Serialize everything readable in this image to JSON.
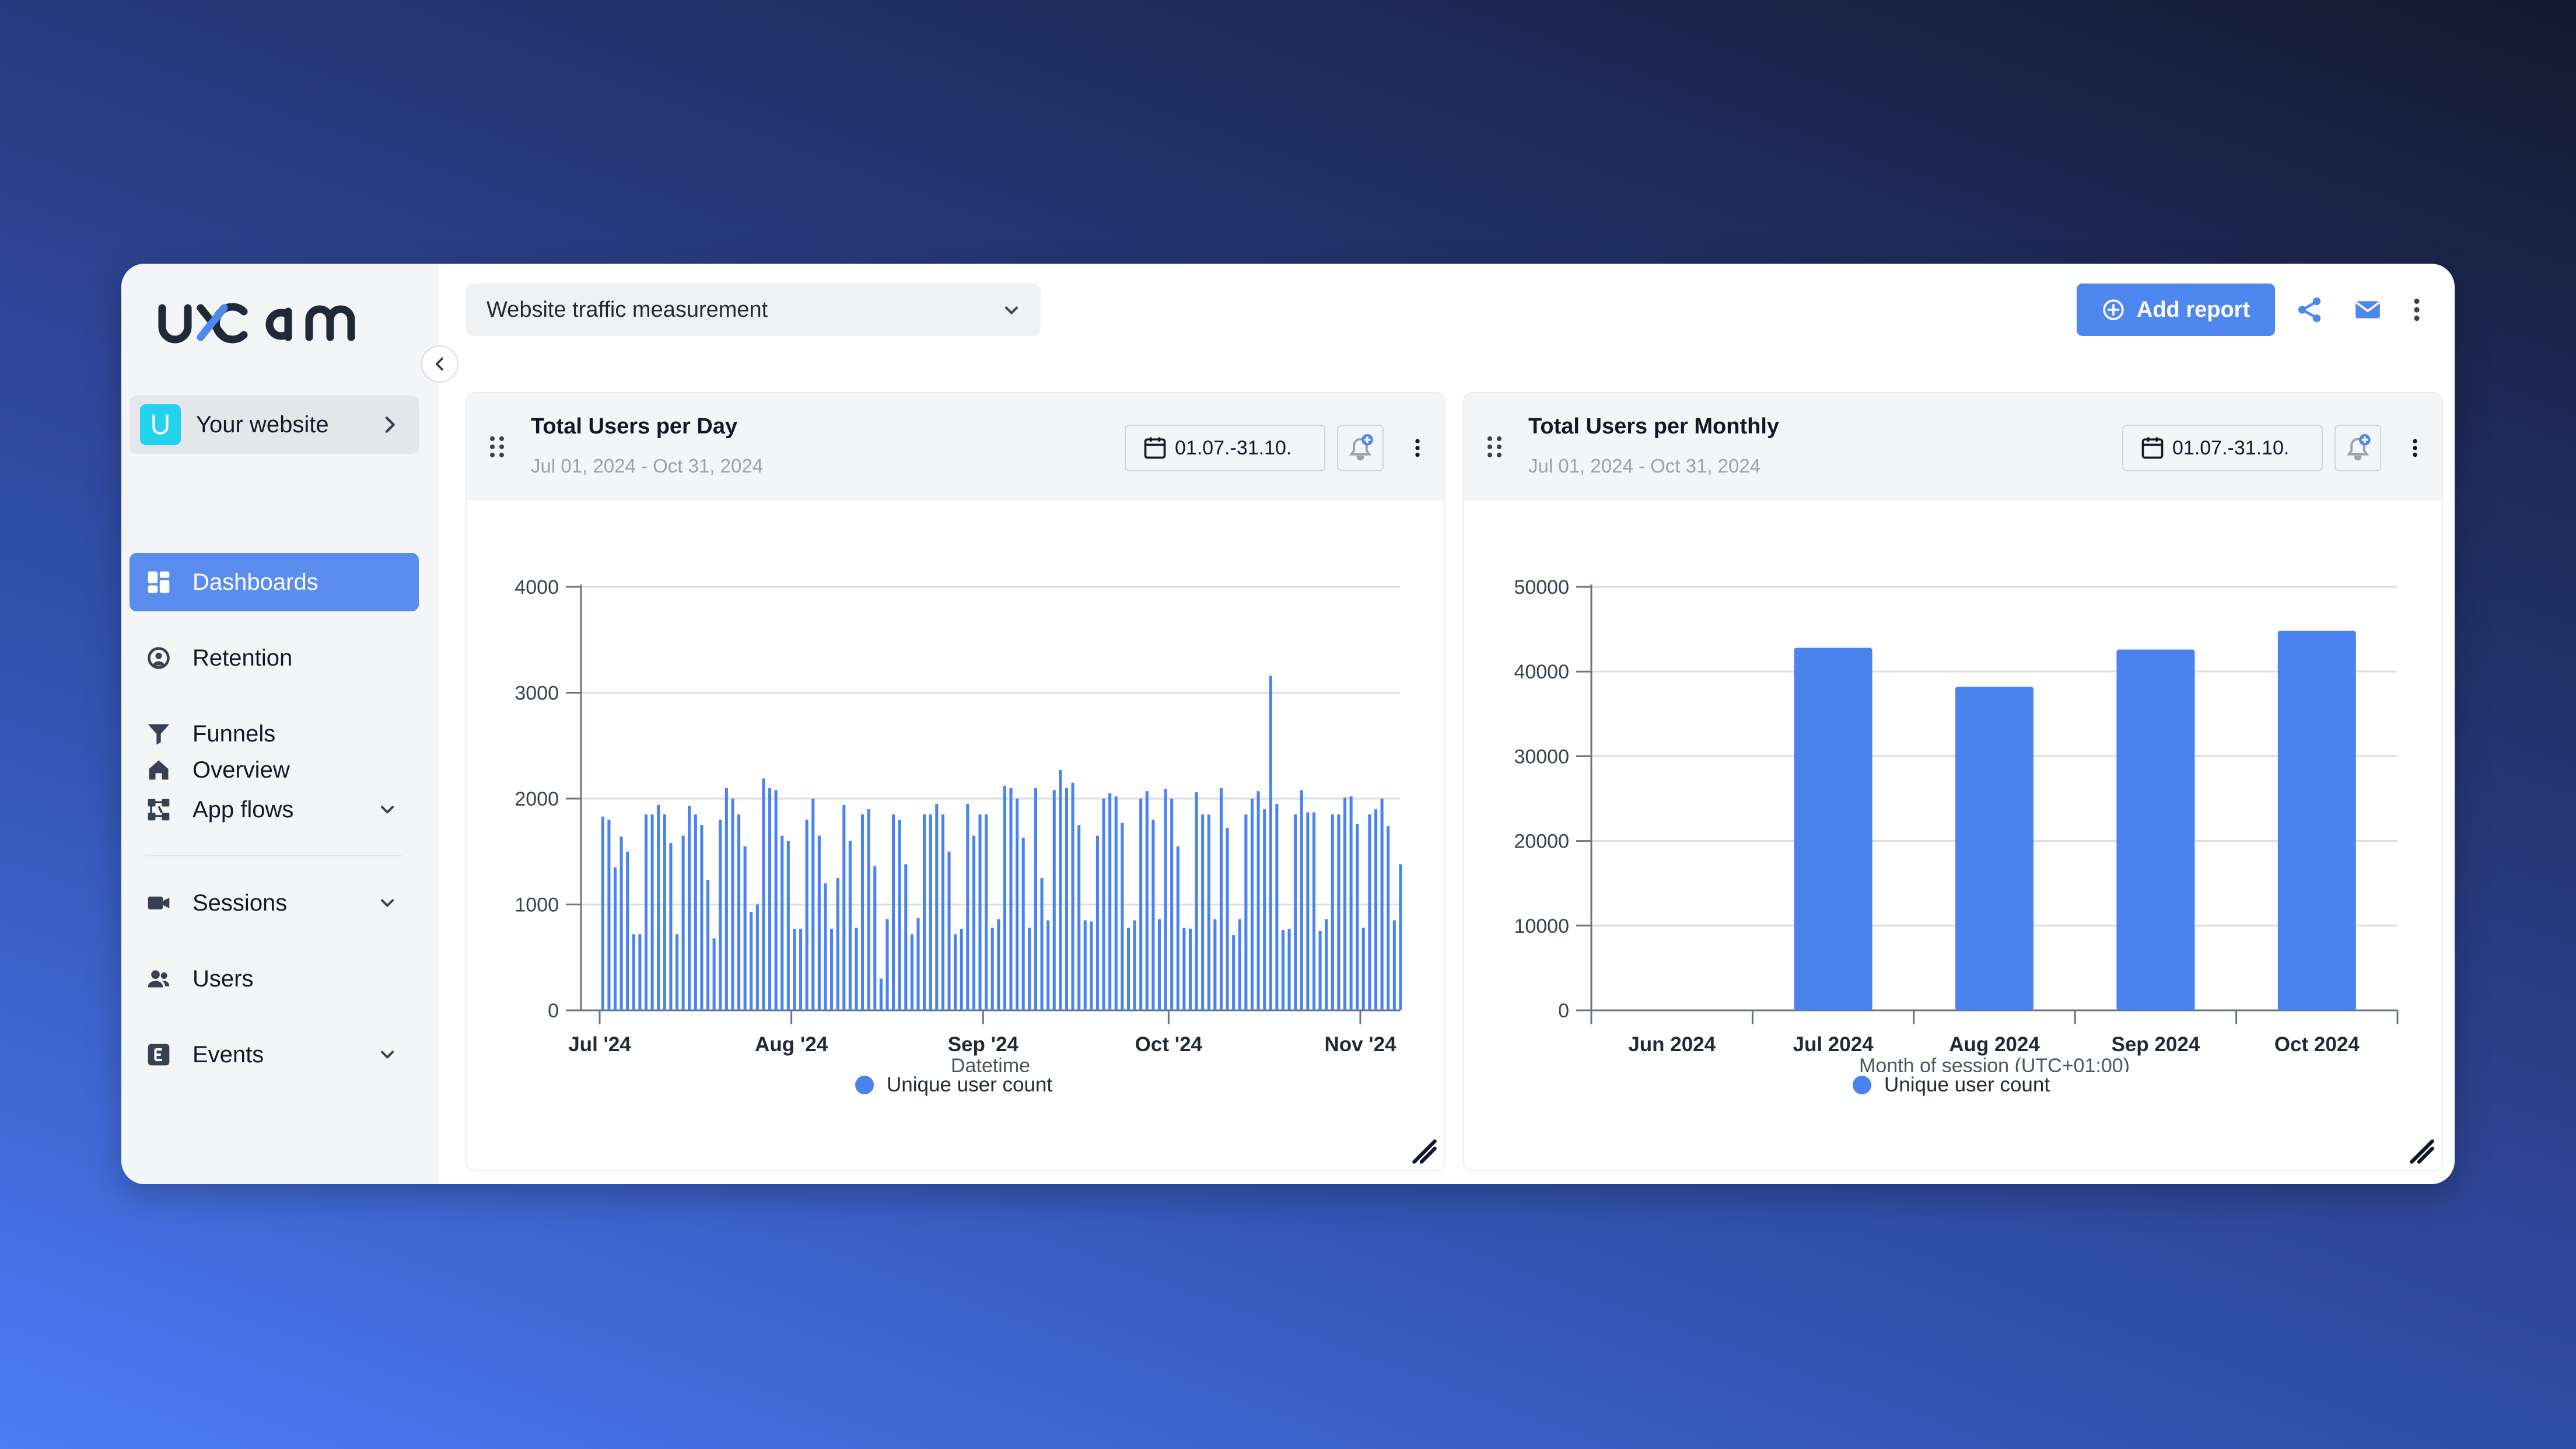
{
  "app": {
    "brand": "uxcam"
  },
  "sidebar": {
    "site": {
      "initial": "U",
      "name": "Your website"
    },
    "items": [
      {
        "label": "Overview",
        "icon": "home-icon"
      },
      {
        "label": "Dashboards",
        "icon": "dashboard-icon",
        "active": true
      },
      {
        "label": "Retention",
        "icon": "retention-icon"
      },
      {
        "label": "Funnels",
        "icon": "funnel-icon"
      },
      {
        "label": "App flows",
        "icon": "app-flows-icon",
        "expandable": true
      },
      {
        "label": "Sessions",
        "icon": "video-icon",
        "expandable": true
      },
      {
        "label": "Users",
        "icon": "users-icon"
      },
      {
        "label": "Events",
        "icon": "events-icon",
        "expandable": true
      }
    ]
  },
  "toolbar": {
    "dashboard_name": "Website traffic measurement",
    "add_report_label": "Add report"
  },
  "colors": {
    "accent": "#4f87f0",
    "bar": "#4a83ee",
    "active_nav": "#5b8def"
  },
  "cards": [
    {
      "title": "Total Users per Day",
      "subtitle": "Jul 01, 2024 - Oct 31, 2024",
      "date_range": "01.07.-31.10.",
      "legend": "Unique user count"
    },
    {
      "title": "Total Users per Monthly",
      "subtitle": "Jul 01, 2024 - Oct 31, 2024",
      "date_range": "01.07.-31.10.",
      "legend": "Unique user count"
    }
  ],
  "chart_data": [
    {
      "type": "bar",
      "title": "Total Users per Day",
      "xlabel": "Datetime",
      "ylabel": "",
      "ylim": [
        0,
        4000
      ],
      "yticks": [
        "0",
        "1000",
        "2000",
        "3000",
        "4000"
      ],
      "xticks": [
        "Jul '24",
        "Aug '24",
        "Sep '24",
        "Oct '24",
        "Nov '24"
      ],
      "x_start": "2024-07-01",
      "series": [
        {
          "name": "Unique user count",
          "values": [
            1830,
            1800,
            1350,
            1640,
            1500,
            720,
            720,
            1850,
            1850,
            1940,
            1850,
            1580,
            720,
            1650,
            1930,
            1850,
            1750,
            1230,
            680,
            1800,
            2100,
            2000,
            1850,
            1550,
            930,
            1000,
            2190,
            2100,
            2080,
            1650,
            1600,
            770,
            770,
            1800,
            2000,
            1650,
            1200,
            770,
            1250,
            1940,
            1600,
            780,
            1850,
            1900,
            1360,
            300,
            860,
            1850,
            1800,
            1380,
            720,
            870,
            1850,
            1850,
            1950,
            1850,
            1500,
            720,
            770,
            1950,
            1650,
            1850,
            1850,
            780,
            860,
            2120,
            2100,
            2000,
            1630,
            780,
            2100,
            1250,
            850,
            2080,
            2270,
            2100,
            2150,
            1750,
            850,
            840,
            1650,
            2000,
            2050,
            2020,
            1770,
            780,
            850,
            2000,
            2070,
            1800,
            860,
            2090,
            2000,
            1550,
            780,
            770,
            2060,
            1850,
            1850,
            860,
            2100,
            1720,
            710,
            860,
            1850,
            2000,
            2070,
            1900,
            3160,
            1950,
            760,
            770,
            1850,
            2080,
            1870,
            1870,
            750,
            860,
            1850,
            1850,
            2010,
            2020,
            1760,
            780,
            1850,
            1900,
            2000,
            1740,
            850,
            1380
          ]
        }
      ]
    },
    {
      "type": "bar",
      "title": "Total Users per Monthly",
      "xlabel": "Month of session (UTC+01:00)",
      "ylabel": "",
      "ylim": [
        0,
        50000
      ],
      "yticks": [
        "0",
        "10000",
        "20000",
        "30000",
        "40000",
        "50000"
      ],
      "categories": [
        "Jun 2024",
        "Jul 2024",
        "Aug 2024",
        "Sep 2024",
        "Oct 2024"
      ],
      "series": [
        {
          "name": "Unique user count",
          "values": [
            0,
            42800,
            38200,
            42600,
            44800
          ]
        }
      ]
    }
  ]
}
